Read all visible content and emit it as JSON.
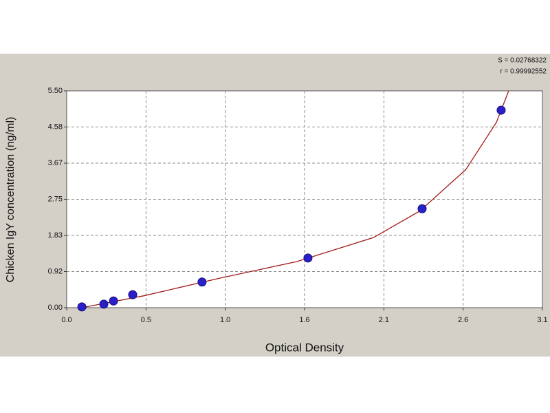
{
  "chart_data": {
    "type": "scatter",
    "xlabel": "Optical Density",
    "ylabel": "Chicken IgY concentration (ng/ml)",
    "annotations": [
      "S = 0.02768322",
      "r = 0.99992552"
    ],
    "x": [
      0.099,
      0.242,
      0.305,
      0.43,
      0.882,
      1.572,
      2.316,
      2.831
    ],
    "values": [
      0.02,
      0.09,
      0.17,
      0.33,
      0.65,
      1.26,
      2.51,
      5.01
    ],
    "color": "#2a1fc8",
    "fit": {
      "x": [
        0.1,
        0.5,
        1.0,
        1.5,
        2.0,
        2.3,
        2.6,
        2.8,
        2.88
      ],
      "values": [
        0.0,
        0.3,
        0.75,
        1.17,
        1.78,
        2.45,
        3.5,
        4.7,
        5.5
      ],
      "color": "#a01818"
    },
    "xlim": [
      0,
      3.1
    ],
    "ylim": [
      0,
      5.5
    ],
    "xticks": [
      {
        "value": 0,
        "label": "0.0"
      },
      {
        "value": 0.517,
        "label": "0.5"
      },
      {
        "value": 1.033,
        "label": "1.0"
      },
      {
        "value": 1.55,
        "label": "1.6"
      },
      {
        "value": 2.067,
        "label": "2.1"
      },
      {
        "value": 2.583,
        "label": "2.6"
      },
      {
        "value": 3.1,
        "label": "3.1"
      }
    ],
    "yticks": [
      {
        "value": 0,
        "label": "0.00"
      },
      {
        "value": 0.917,
        "label": "0.92"
      },
      {
        "value": 1.833,
        "label": "1.83"
      },
      {
        "value": 2.75,
        "label": "2.75"
      },
      {
        "value": 3.667,
        "label": "3.67"
      },
      {
        "value": 4.583,
        "label": "4.58"
      },
      {
        "value": 5.5,
        "label": "5.50"
      }
    ],
    "grid": true
  }
}
